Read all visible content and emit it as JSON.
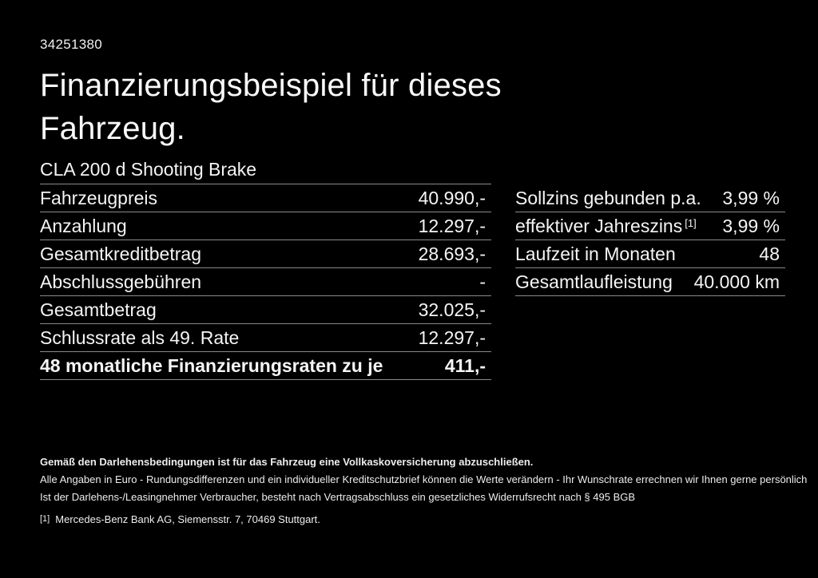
{
  "page": {
    "doc_id": "34251380",
    "title_line1": "Finanzierungsbeispiel für dieses",
    "title_line2": "Fahrzeug.",
    "vehicle_model": "CLA 200 d Shooting Brake"
  },
  "financing_table": {
    "rows": [
      {
        "label": "Fahrzeugpreis",
        "value": "40.990,-"
      },
      {
        "label": "Anzahlung",
        "value": "12.297,-"
      },
      {
        "label": "Gesamtkreditbetrag",
        "value": "28.693,-"
      },
      {
        "label": "Abschlussgebühren",
        "value": "-"
      },
      {
        "label": "Gesamtbetrag",
        "value": "32.025,-"
      },
      {
        "label": "Schlussrate als 49. Rate",
        "value": "12.297,-"
      },
      {
        "label": "48 monatliche Finanzierungsraten zu je",
        "value": "411,-"
      }
    ]
  },
  "conditions_table": {
    "rows": [
      {
        "label": "Sollzins gebunden p.a.",
        "value": "3,99 %"
      },
      {
        "label": "effektiver Jahreszins",
        "label_superscript": "[1]",
        "value": "3,99 %"
      },
      {
        "label": "Laufzeit in Monaten",
        "value": "48"
      },
      {
        "label": "Gesamtlaufleistung",
        "value": "40.000 km"
      }
    ]
  },
  "footer": {
    "insurance_note": "Gemäß den Darlehensbedingungen ist für das Fahrzeug eine Vollkaskoversicherung abzuschließen.",
    "disclaimer_line1": "Alle Angaben in Euro - Rundungsdifferenzen und ein individueller Kreditschutzbrief können die Werte verändern - Ihr Wunschrate errechnen wir Ihnen gerne persönlich",
    "disclaimer_line2": "Ist der Darlehens-/Leasingnehmer Verbraucher, besteht nach Vertragsabschluss ein gesetzliches Widerrufsrecht nach § 495 BGB",
    "footnote_marker": "[1]",
    "footnote_text": "Mercedes-Benz Bank AG, Siemensstr. 7, 70469 Stuttgart."
  },
  "colors": {
    "background": "#000000",
    "text": "#f5f5f5",
    "divider": "#8a8a8a"
  }
}
